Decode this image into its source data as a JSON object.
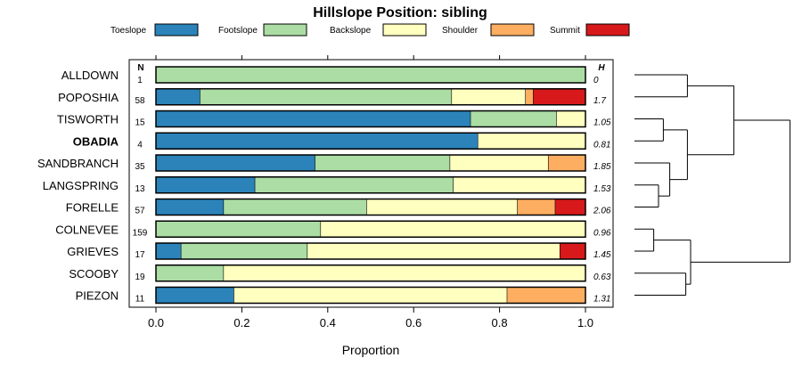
{
  "chart_data": {
    "type": "bar",
    "orientation": "horizontal",
    "stacked": true,
    "title": "Hillslope Position: sibling",
    "xlabel": "Proportion",
    "xlim": [
      0,
      1
    ],
    "x_ticks": [
      "0.0",
      "0.2",
      "0.4",
      "0.6",
      "0.8",
      "1.0"
    ],
    "n_header": "N",
    "h_header": "H",
    "legend_position": "top",
    "series": [
      {
        "name": "Toeslope",
        "color": "#2b83ba"
      },
      {
        "name": "Footslope",
        "color": "#abdda4"
      },
      {
        "name": "Backslope",
        "color": "#ffffbf"
      },
      {
        "name": "Shoulder",
        "color": "#fdae61"
      },
      {
        "name": "Summit",
        "color": "#d7191c"
      }
    ],
    "categories": [
      {
        "name": "ALLDOWN",
        "n": "1",
        "h": "0",
        "bold": false,
        "values": [
          0,
          1.0,
          0,
          0,
          0
        ]
      },
      {
        "name": "POPOSHIA",
        "n": "58",
        "h": "1.7",
        "bold": false,
        "values": [
          0.103,
          0.586,
          0.172,
          0.018,
          0.121
        ]
      },
      {
        "name": "TISWORTH",
        "n": "15",
        "h": "1.05",
        "bold": false,
        "values": [
          0.733,
          0.2,
          0.067,
          0,
          0
        ]
      },
      {
        "name": "OBADIA",
        "n": "4",
        "h": "0.81",
        "bold": true,
        "values": [
          0.75,
          0,
          0.25,
          0,
          0
        ]
      },
      {
        "name": "SANDBRANCH",
        "n": "35",
        "h": "1.85",
        "bold": false,
        "values": [
          0.371,
          0.314,
          0.229,
          0.086,
          0
        ]
      },
      {
        "name": "LANGSPRING",
        "n": "13",
        "h": "1.53",
        "bold": false,
        "values": [
          0.231,
          0.462,
          0.307,
          0,
          0
        ]
      },
      {
        "name": "FORELLE",
        "n": "57",
        "h": "2.06",
        "bold": false,
        "values": [
          0.158,
          0.333,
          0.351,
          0.088,
          0.07
        ]
      },
      {
        "name": "COLNEVEE",
        "n": "159",
        "h": "0.96",
        "bold": false,
        "values": [
          0,
          0.384,
          0.616,
          0,
          0
        ]
      },
      {
        "name": "GRIEVES",
        "n": "17",
        "h": "1.45",
        "bold": false,
        "values": [
          0.059,
          0.294,
          0.588,
          0,
          0.059
        ]
      },
      {
        "name": "SCOOBY",
        "n": "19",
        "h": "0.63",
        "bold": false,
        "values": [
          0,
          0.158,
          0.842,
          0,
          0
        ]
      },
      {
        "name": "PIEZON",
        "n": "11",
        "h": "1.31",
        "bold": false,
        "values": [
          0.182,
          0,
          0.636,
          0.182,
          0
        ]
      }
    ],
    "dendrogram": {
      "heights_relative": {
        "leaf": 0,
        "ALLDOWN_POPOSHIA": 0.33,
        "TISWORTH_OBADIA": 0.18,
        "LANGSPRING_FORELLE": 0.15,
        "SANDBRANCH_LF": 0.22,
        "TO_SLF": 0.33,
        "ALLPOP_TOSLF": 0.62,
        "COLNEVEE_GRIEVES": 0.12,
        "SCOOBY_PIEZON": 0.32,
        "CG_SP": 0.35,
        "TOP": 0.97
      }
    }
  }
}
